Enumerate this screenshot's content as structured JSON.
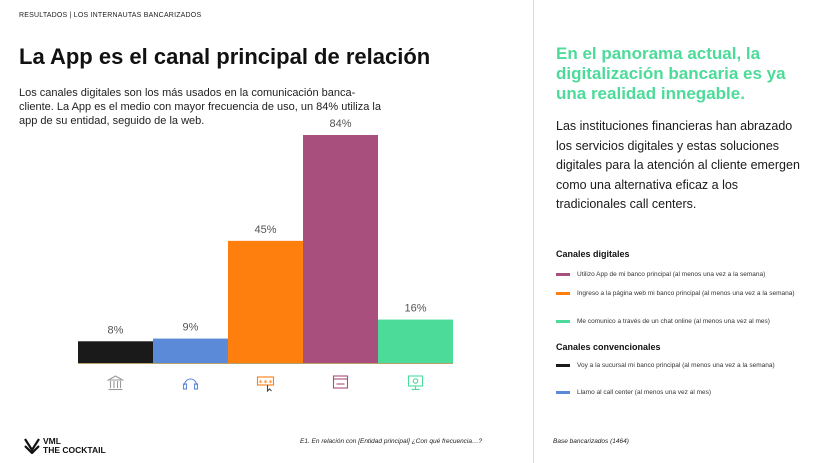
{
  "breadcrumb": "RESULTADOS | LOS INTERNAUTAS BANCARIZADOS",
  "title": "La App es el canal principal de relación",
  "intro": "Los canales digitales son los más usados en la comunicación banca-cliente. La App es el medio con mayor frecuencia de uso, un 84% utiliza la app de su entidad, seguido de la web.",
  "right": {
    "headline": "En el panorama actual, la digitalización bancaria es ya una realidad innegable.",
    "body": "Las instituciones financieras han abrazado los servicios digitales y estas soluciones digitales para la atención al cliente emergen como una alternativa eficaz a los tradicionales call centers.",
    "legend_digital_title": "Canales digitales",
    "legend_conventional_title": "Canales convencionales"
  },
  "footer": {
    "question": "E1. En relación con [Entidad principal] ¿Con qué frecuencia…?",
    "base": "Base bancarizados (1464)",
    "logo_line1": "VML",
    "logo_line2": "THE COCKTAIL"
  },
  "chart_data": {
    "type": "bar",
    "categories": [
      "Voy a la sucursal mi banco principal (al menos una vez a la semana)",
      "Llamo al call center (al menos una vez al mes)",
      "Ingreso a la página web mi banco principal (al menos una vez a la semana)",
      "Utilizo App de mi banco principal (al menos una vez a la semana)",
      "Me comunico a través de un chat online (al menos una vez al mes)"
    ],
    "values": [
      8,
      9,
      45,
      84,
      16
    ],
    "labels": [
      "8%",
      "9%",
      "45%",
      "84%",
      "16%"
    ],
    "colors": [
      "#1a1a1a",
      "#5b8ad9",
      "#ff7f0e",
      "#a94f7d",
      "#4ddb9a"
    ],
    "icons": [
      "bank-icon",
      "headset-icon",
      "web-icon",
      "app-icon",
      "chat-icon"
    ],
    "ylim": [
      0,
      100
    ],
    "title": "",
    "xlabel": "",
    "ylabel": ""
  },
  "legend": {
    "digital": [
      {
        "label": "Utilizo App de mi banco principal (al menos una vez a la semana)",
        "color": "#a94f7d"
      },
      {
        "label": "Ingreso a la página web mi banco principal (al menos una vez a la semana)",
        "color": "#ff7f0e"
      },
      {
        "label": "Me comunico a través de un chat online (al menos una vez al mes)",
        "color": "#4ddb9a"
      }
    ],
    "conventional": [
      {
        "label": "Voy a la sucursal mi banco principal (al menos una vez a la semana)",
        "color": "#1a1a1a"
      },
      {
        "label": "Llamo al call center (al menos una vez al mes)",
        "color": "#5b8ad9"
      }
    ]
  }
}
